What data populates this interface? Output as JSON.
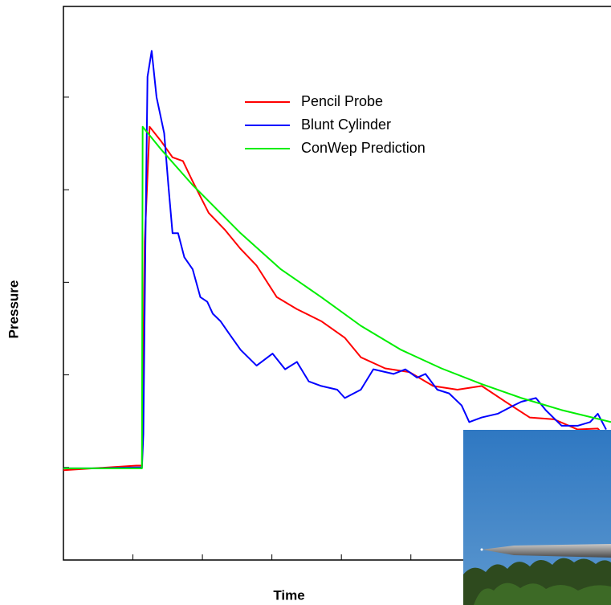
{
  "chart_data": {
    "type": "line",
    "x_label": "Time",
    "y_label": "Pressure",
    "xlim": [
      0,
      7.88
    ],
    "ylim": [
      0,
      5.98
    ],
    "xticks": [
      1,
      2,
      3,
      4,
      5,
      6,
      7
    ],
    "yticks": [
      1,
      2,
      3,
      4,
      5
    ],
    "grid": false,
    "legend_position": "upper-center",
    "series": [
      {
        "name": "Pencil Probe",
        "color": "#ff0000",
        "x": [
          0,
          1.05,
          1.13,
          1.17,
          1.24,
          1.4,
          1.57,
          1.72,
          1.86,
          2.09,
          2.32,
          2.55,
          2.78,
          3.07,
          3.36,
          3.71,
          4.05,
          4.28,
          4.63,
          4.98,
          5.32,
          5.67,
          6.02,
          6.36,
          6.71,
          7.06,
          7.4,
          7.69,
          7.81
        ],
        "values": [
          0.97,
          1.02,
          1.02,
          3.44,
          4.68,
          4.53,
          4.35,
          4.31,
          4.09,
          3.75,
          3.57,
          3.36,
          3.18,
          2.84,
          2.71,
          2.58,
          2.4,
          2.19,
          2.07,
          2.03,
          1.88,
          1.84,
          1.88,
          1.71,
          1.54,
          1.52,
          1.41,
          1.42,
          1.32
        ]
      },
      {
        "name": "Blunt Cylinder",
        "color": "#0000ff",
        "x": [
          0,
          0.47,
          1.05,
          1.13,
          1.15,
          1.18,
          1.21,
          1.27,
          1.34,
          1.45,
          1.51,
          1.57,
          1.65,
          1.74,
          1.86,
          1.97,
          2.07,
          2.15,
          2.26,
          2.38,
          2.55,
          2.78,
          3.01,
          3.19,
          3.36,
          3.53,
          3.71,
          3.94,
          4.05,
          4.28,
          4.46,
          4.75,
          4.92,
          5.09,
          5.21,
          5.38,
          5.55,
          5.73,
          5.84,
          6.02,
          6.25,
          6.48,
          6.59,
          6.8,
          6.94,
          7.17,
          7.4,
          7.58,
          7.69,
          7.81
        ],
        "values": [
          0.99,
          0.99,
          1.0,
          1.0,
          1.36,
          3.44,
          5.22,
          5.5,
          5.0,
          4.61,
          4.05,
          3.53,
          3.53,
          3.27,
          3.14,
          2.84,
          2.79,
          2.66,
          2.58,
          2.45,
          2.27,
          2.1,
          2.23,
          2.06,
          2.14,
          1.93,
          1.88,
          1.84,
          1.75,
          1.84,
          2.06,
          2.01,
          2.06,
          1.97,
          2.01,
          1.84,
          1.8,
          1.67,
          1.49,
          1.54,
          1.58,
          1.67,
          1.71,
          1.75,
          1.62,
          1.45,
          1.45,
          1.49,
          1.58,
          1.41
        ]
      },
      {
        "name": "ConWep Prediction",
        "color": "#00ee00",
        "x": [
          0,
          1.13,
          1.14,
          1.4,
          1.86,
          2.55,
          3.13,
          3.71,
          4.28,
          4.86,
          5.44,
          6.02,
          6.59,
          7.17,
          7.88
        ],
        "values": [
          0.99,
          0.99,
          4.68,
          4.44,
          4.05,
          3.53,
          3.14,
          2.84,
          2.53,
          2.27,
          2.07,
          1.9,
          1.75,
          1.62,
          1.49
        ]
      }
    ]
  }
}
